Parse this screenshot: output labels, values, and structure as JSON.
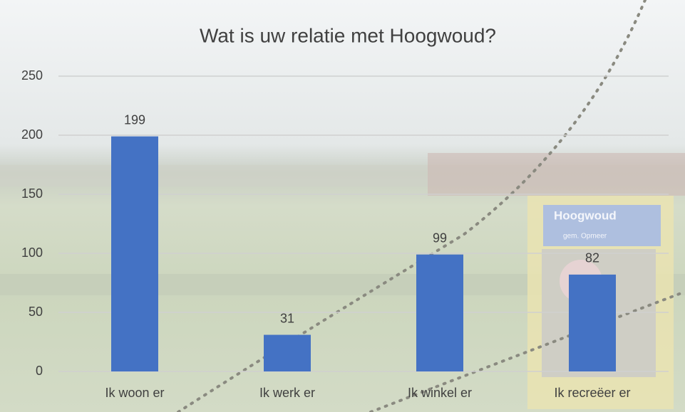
{
  "chart_data": {
    "type": "bar",
    "title": "Wat is uw relatie met Hoogwoud?",
    "categories": [
      "Ik woon er",
      "Ik werk er",
      "Ik winkel er",
      "Ik recreëer er"
    ],
    "values": [
      199,
      31,
      99,
      82
    ],
    "color": "#4472c4",
    "ylim": [
      0,
      250
    ],
    "yticks": [
      0,
      50,
      100,
      150,
      200,
      250
    ],
    "grid": true,
    "annotations": [
      "Hoogwoud",
      "gem. Opmeer"
    ]
  }
}
